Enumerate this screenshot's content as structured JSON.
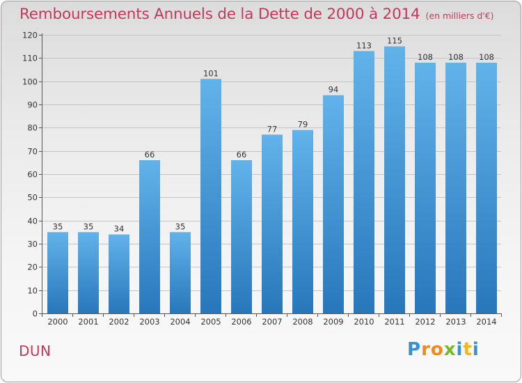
{
  "chart_data": {
    "type": "bar",
    "title": "Remboursements Annuels de la Dette de 2000 à 2014",
    "subtitle": "(en milliers d'€)",
    "categories": [
      "2000",
      "2001",
      "2002",
      "2003",
      "2004",
      "2005",
      "2006",
      "2007",
      "2008",
      "2009",
      "2010",
      "2011",
      "2012",
      "2013",
      "2014"
    ],
    "values": [
      35,
      35,
      34,
      66,
      35,
      101,
      66,
      77,
      79,
      94,
      113,
      115,
      108,
      108,
      108
    ],
    "ylim": [
      0,
      120
    ],
    "yticks": [
      0,
      10,
      20,
      30,
      40,
      50,
      60,
      70,
      80,
      90,
      100,
      110,
      120
    ],
    "grid": true,
    "data_labels": true,
    "bar_color_light": "#5dade8",
    "bar_color_dark": "#2a7fc2"
  },
  "footer": {
    "town": "DUN",
    "logo_letters": [
      "P",
      "r",
      "o",
      "x",
      "i",
      "t",
      "i"
    ],
    "logo_colors": [
      "#3a8fd0",
      "#f08a1c",
      "#f08a1c",
      "#79b82b",
      "#3a8fd0",
      "#f0b81c",
      "#3a8fd0"
    ]
  },
  "colors": {
    "accent": "#c2395a"
  }
}
